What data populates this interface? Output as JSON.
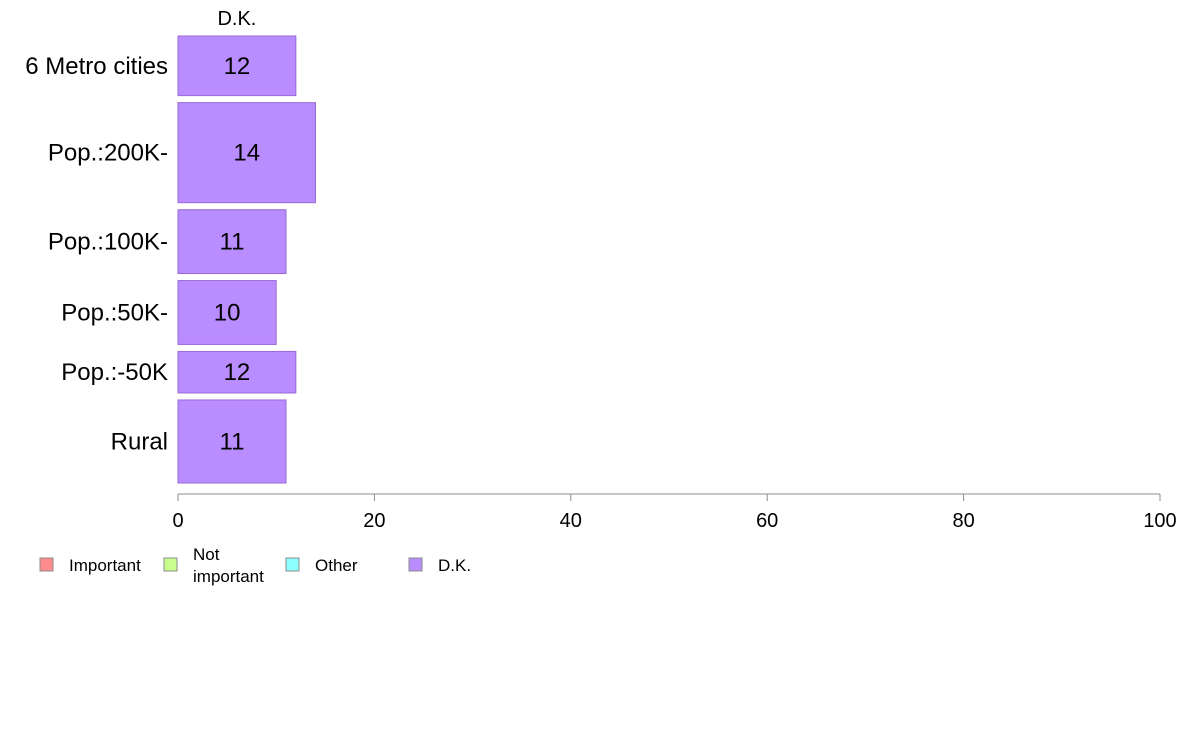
{
  "chart_data": {
    "type": "bar",
    "orientation": "horizontal",
    "stacked": true,
    "categories": [
      "6 Metro cities",
      "Pop.:200K-",
      "Pop.:100K-",
      "Pop.:50K-",
      "Pop.:-50K",
      "Rural"
    ],
    "series": [
      {
        "name": "Important",
        "color": "#ff8c8c",
        "values": [
          0,
          0,
          0,
          0,
          0,
          0
        ]
      },
      {
        "name": "Not important",
        "color": "#c8ff8c",
        "values": [
          0,
          0,
          0,
          0,
          0,
          0
        ]
      },
      {
        "name": "Other",
        "color": "#8cffff",
        "values": [
          0,
          0,
          0,
          0,
          0,
          0
        ]
      },
      {
        "name": "D.K.",
        "color": "#b98cff",
        "values": [
          12,
          14,
          11,
          10,
          12,
          11
        ]
      }
    ],
    "relative_weights": [
      0.56,
      0.94,
      0.6,
      0.6,
      0.39,
      0.78
    ],
    "top_label": "D.K.",
    "xlim": [
      0,
      100
    ],
    "xticks": [
      0,
      20,
      40,
      60,
      80,
      100
    ],
    "legend_position": "bottom-left",
    "grid": false
  }
}
